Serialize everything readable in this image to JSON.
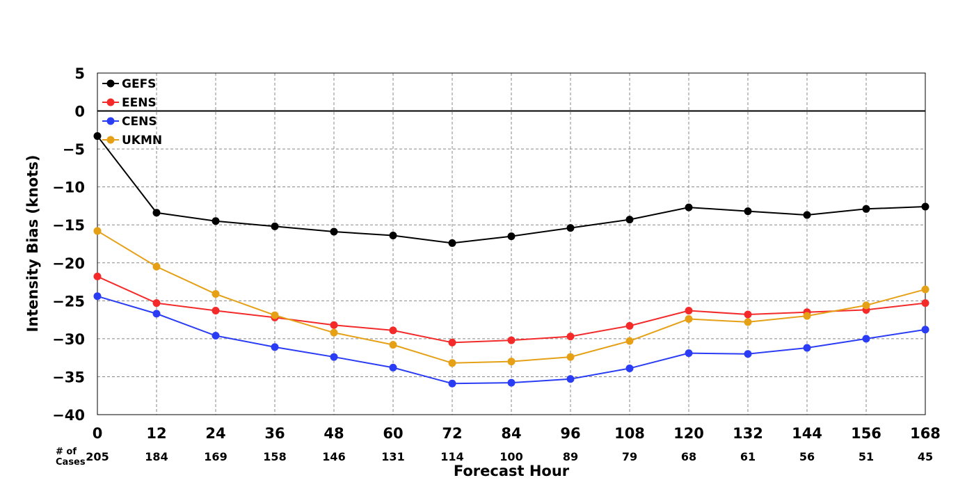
{
  "chart_data": {
    "type": "line",
    "title": "",
    "xlabel": "Forecast Hour",
    "ylabel": "Intensity Bias (knots)",
    "xlim": [
      0,
      168
    ],
    "ylim": [
      -40,
      5
    ],
    "x": [
      0,
      12,
      24,
      36,
      48,
      60,
      72,
      84,
      96,
      108,
      120,
      132,
      144,
      156,
      168
    ],
    "x_ticks": [
      "0",
      "12",
      "24",
      "36",
      "48",
      "60",
      "72",
      "84",
      "96",
      "108",
      "120",
      "132",
      "144",
      "156",
      "168"
    ],
    "y_ticks": [
      "5",
      "0",
      "−5",
      "−10",
      "−15",
      "−20",
      "−25",
      "−30",
      "−35",
      "−40"
    ],
    "grid": true,
    "legend_position": "top-left",
    "cases_label_line1": "# of",
    "cases_label_line2": "Cases",
    "cases": [
      "205",
      "184",
      "169",
      "158",
      "146",
      "131",
      "114",
      "100",
      "89",
      "79",
      "68",
      "61",
      "56",
      "51",
      "45"
    ],
    "series": [
      {
        "name": "GEFS",
        "color": "#000000",
        "values": [
          -3.3,
          -13.4,
          -14.5,
          -15.2,
          -15.9,
          -16.4,
          -17.4,
          -16.5,
          -15.4,
          -14.3,
          -12.7,
          -13.2,
          -13.7,
          -12.9,
          -12.6
        ]
      },
      {
        "name": "EENS",
        "color": "#f42a2a",
        "values": [
          -21.8,
          -25.3,
          -26.3,
          -27.2,
          -28.2,
          -28.9,
          -30.5,
          -30.2,
          -29.7,
          -28.3,
          -26.3,
          -26.8,
          -26.5,
          -26.2,
          -25.3
        ]
      },
      {
        "name": "CENS",
        "color": "#2b3cf5",
        "values": [
          -24.4,
          -26.7,
          -29.6,
          -31.1,
          -32.4,
          -33.8,
          -35.9,
          -35.8,
          -35.3,
          -33.9,
          -31.9,
          -32.0,
          -31.2,
          -30.0,
          -28.8
        ]
      },
      {
        "name": "UKMN",
        "color": "#e5a016",
        "values": [
          -15.8,
          -20.5,
          -24.1,
          -26.9,
          -29.2,
          -30.8,
          -33.2,
          -33.0,
          -32.4,
          -30.3,
          -27.4,
          -27.8,
          -27.0,
          -25.6,
          -23.5
        ]
      }
    ]
  }
}
